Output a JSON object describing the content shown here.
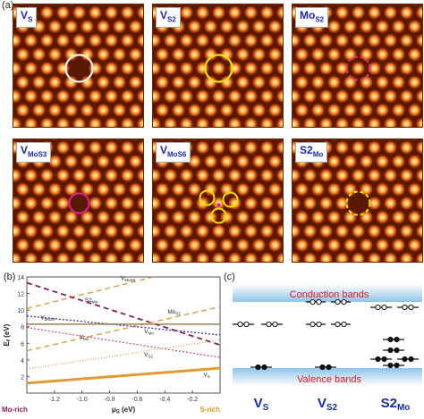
{
  "labels": {
    "a": "(a)",
    "b": "(b)",
    "c": "(c)"
  },
  "images": [
    {
      "main": "V",
      "sub": "S",
      "marker": "solid",
      "color": "#f0f0f0"
    },
    {
      "main": "V",
      "sub": "S2",
      "marker": "solid",
      "color": "#f5e000"
    },
    {
      "main": "Mo",
      "sub": "S2",
      "marker": "dashed",
      "color": "#e0308a"
    },
    {
      "main": "V",
      "sub": "MoS3",
      "marker": "solid",
      "color": "#d4208a"
    },
    {
      "main": "V",
      "sub": "MoS6",
      "marker": "triple",
      "color": "#f5e000"
    },
    {
      "main": "S2",
      "sub": "Mo",
      "marker": "dashed",
      "color": "#f5e000"
    }
  ],
  "chart_data": {
    "type": "line",
    "ylabel": "E",
    "ylabel_sub": "f",
    "ylabel_unit": "(eV)",
    "xlabel": "μ",
    "xlabel_sub": "S",
    "xlabel_unit": "(eV)",
    "xlim": [
      -1.4,
      0.0
    ],
    "ylim": [
      0,
      14
    ],
    "xticks": [
      "-1.2",
      "-1.0",
      "-0.8",
      "-0.6",
      "-0.4",
      "-0.2"
    ],
    "xtick_values": [
      -1.2,
      -1.0,
      -0.8,
      -0.6,
      -0.4,
      -0.2
    ],
    "yticks": [
      "2",
      "4",
      "6",
      "8",
      "10",
      "12",
      "14"
    ],
    "ytick_values": [
      2,
      4,
      6,
      8,
      10,
      12,
      14
    ],
    "x_left_label": "Mo-rich",
    "x_right_label": "S-rich",
    "series": [
      {
        "name": "V_MoS6",
        "main": "V",
        "sub": "MoS6",
        "x": [
          -1.4,
          0.0
        ],
        "y": [
          10.2,
          16.0
        ],
        "color": "#d9a54a",
        "dash": "6,4",
        "width": 1.5,
        "label_x": -0.72,
        "label_y": 13.6
      },
      {
        "name": "S2_Mo",
        "main": "S2",
        "sub": "Mo",
        "x": [
          -1.4,
          0.0
        ],
        "y": [
          13.3,
          5.8
        ],
        "color": "#8b1f5e",
        "dash": "6,4",
        "width": 1.8,
        "label_x": -0.98,
        "label_y": 11.0
      },
      {
        "name": "Mo_S2",
        "main": "Mo",
        "sub": "S2",
        "x": [
          -1.4,
          0.0
        ],
        "y": [
          5.1,
          10.4
        ],
        "color": "#d9a54a",
        "dash": "6,4",
        "width": 1.5,
        "label_x": -0.38,
        "label_y": 9.6
      },
      {
        "name": "V_MoS3",
        "main": "V",
        "sub": "MoS3",
        "x": [
          -1.4,
          0.0
        ],
        "y": [
          9.3,
          7.0
        ],
        "color": "#3a2a9a",
        "dash": "2,2",
        "width": 1.3,
        "label_x": -1.3,
        "label_y": 8.9
      },
      {
        "name": "V_Mo",
        "main": "V",
        "sub": "Mo",
        "x": [
          -1.4,
          0.0
        ],
        "y": [
          8.3,
          8.3
        ],
        "color": "#8a6a30",
        "dash": "",
        "width": 1.2,
        "label_x": -0.55,
        "label_y": 7.2
      },
      {
        "name": "V_Mo",
        "main": "V",
        "sub": "Mo",
        "x": [
          -1.4,
          0.0
        ],
        "y": [
          7.9,
          4.3
        ],
        "color": "#c04a70",
        "dash": "2,2",
        "width": 1.2,
        "label_x": -1.02,
        "label_y": 6.5
      },
      {
        "name": "V_S2",
        "main": "V",
        "sub": "S2",
        "x": [
          -1.4,
          0.0
        ],
        "y": [
          2.9,
          6.4
        ],
        "color": "#d9a54a",
        "dash": "1,2",
        "width": 1.4,
        "label_x": -0.55,
        "label_y": 4.4
      },
      {
        "name": "V_S",
        "main": "V",
        "sub": "S",
        "x": [
          -1.4,
          0.0
        ],
        "y": [
          1.2,
          3.0
        ],
        "color": "#e39b33",
        "dash": "",
        "width": 3.0,
        "label_x": -0.12,
        "label_y": 2.0
      }
    ]
  },
  "bands": {
    "conduction": "Conduction bands",
    "valence": "Valence bands",
    "columns": [
      {
        "main": "V",
        "sub": "S"
      },
      {
        "main": "V",
        "sub": "S2"
      },
      {
        "main": "S2",
        "sub": "Mo"
      }
    ]
  }
}
